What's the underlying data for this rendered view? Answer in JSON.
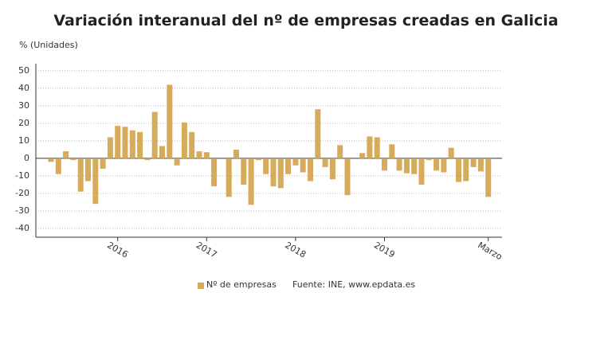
{
  "chart_data": {
    "type": "bar",
    "title": "Variación interanual del nº de empresas creadas en Galicia",
    "y_label": "% (Unidades)",
    "source": "Fuente: INE, www.epdata.es",
    "color": "#d6ab5b",
    "categories": [
      null,
      null,
      null,
      null,
      null,
      null,
      null,
      null,
      null,
      "2016",
      null,
      null,
      null,
      null,
      null,
      null,
      null,
      null,
      null,
      null,
      null,
      "2017",
      null,
      null,
      null,
      null,
      null,
      null,
      null,
      null,
      null,
      null,
      null,
      "2018",
      null,
      null,
      null,
      null,
      null,
      null,
      null,
      null,
      null,
      null,
      null,
      "2019",
      null,
      null,
      null,
      null,
      null,
      null,
      null,
      null,
      null,
      null,
      null,
      null,
      null,
      "Marzo"
    ],
    "series": [
      {
        "name": "Nº de empresas",
        "color": "#d6ab5b",
        "values": [
          -2,
          -9,
          4,
          -1,
          -19,
          -13,
          -26,
          -6,
          12,
          18.5,
          18,
          16,
          15,
          -1,
          26.5,
          7,
          42,
          -4,
          20.5,
          15,
          4,
          3.5,
          -16,
          0,
          -22,
          5,
          -15,
          -26.5,
          -1,
          -9,
          -16,
          -17,
          -9,
          -4,
          -8,
          -13,
          28,
          -5,
          -12,
          7.5,
          -21,
          0,
          3,
          12.5,
          12,
          -7,
          8,
          -7,
          -8.5,
          -9,
          -15,
          -1,
          -7,
          -8,
          6,
          -13.5,
          -13,
          -5,
          -7.5,
          -22
        ]
      }
    ],
    "ylim": [
      -45,
      54
    ],
    "yticks": [
      -40,
      -30,
      -20,
      -10,
      0,
      10,
      20,
      30,
      40,
      50
    ],
    "grid": true
  }
}
